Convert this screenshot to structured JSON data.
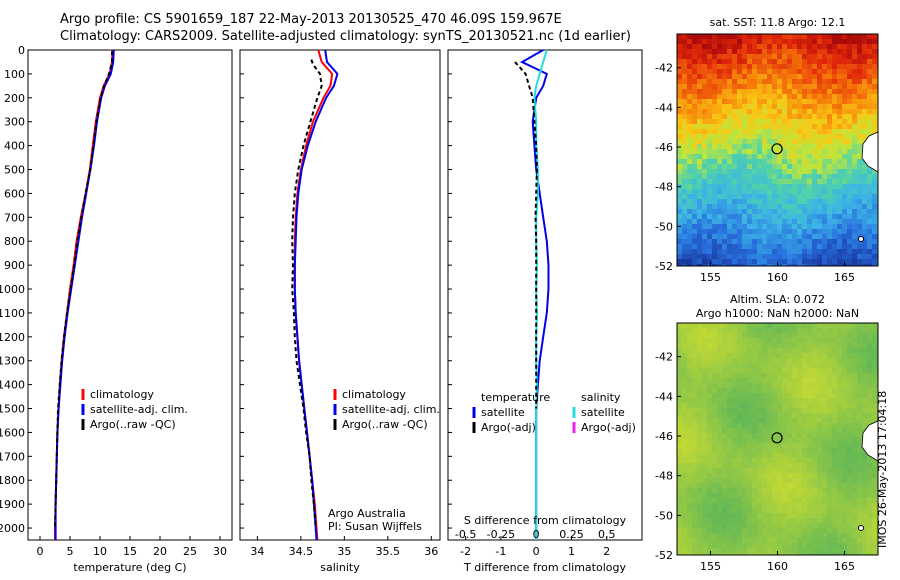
{
  "header": {
    "line1": "Argo profile: CS 5901659_187 22-May-2013 20130525_470 46.09S 159.967E",
    "line2": "Climatology: CARS2009. Satellite-adjusted climatology: synTS_20130521.nc (1d earlier)"
  },
  "stamp": "IMOS 26-May-2013 17:04:18",
  "colors": {
    "climatology": "#ff0000",
    "satellite": "#0000ee",
    "argo": "#000000",
    "salinity_satellite": "#22dddd",
    "salinity_argo": "#ee22ee"
  },
  "chart_data": [
    {
      "type": "line",
      "name": "temperature-profile",
      "xlabel": "temperature (deg C)",
      "ylabel": "",
      "xlim": [
        -2,
        32
      ],
      "ylim": [
        2050,
        0
      ],
      "xticks": [
        0,
        5,
        10,
        15,
        20,
        25,
        30
      ],
      "yticks": [
        0,
        100,
        200,
        300,
        400,
        500,
        600,
        700,
        800,
        900,
        1000,
        1100,
        1200,
        1300,
        1400,
        1500,
        1600,
        1700,
        1800,
        1900,
        2000
      ],
      "legend": [
        "climatology",
        "satellite-adj. clim.",
        "Argo(..raw -QC)"
      ],
      "legend_position": "lower-center",
      "series": [
        {
          "depth": [
            0,
            50,
            100,
            150,
            200,
            300,
            400,
            500,
            600,
            700,
            800,
            900,
            1000,
            1100,
            1200,
            1300,
            1400,
            1500,
            1600,
            1700,
            1800,
            1900,
            2000,
            2050
          ],
          "values": [
            12.1,
            12.0,
            11.6,
            10.6,
            10.0,
            9.3,
            8.8,
            8.3,
            7.6,
            6.8,
            6.1,
            5.6,
            5.0,
            4.5,
            4.0,
            3.6,
            3.3,
            3.1,
            2.9,
            2.8,
            2.7,
            2.6,
            2.5,
            2.5
          ]
        },
        {
          "depth": [
            0,
            50,
            100,
            150,
            200,
            300,
            400,
            500,
            600,
            700,
            800,
            900,
            1000,
            1100,
            1200,
            1300,
            1400,
            1500,
            1600,
            1700,
            1800,
            1900,
            2000,
            2050
          ],
          "values": [
            12.3,
            12.2,
            11.8,
            10.8,
            10.2,
            9.5,
            9.0,
            8.4,
            7.7,
            7.0,
            6.4,
            5.8,
            5.2,
            4.6,
            4.1,
            3.7,
            3.4,
            3.1,
            2.9,
            2.8,
            2.7,
            2.6,
            2.6,
            2.6
          ]
        },
        {
          "depth": [
            5,
            50,
            100,
            150,
            200,
            300,
            400,
            500,
            600,
            700,
            800,
            900,
            1000,
            1100,
            1200,
            1300,
            1400,
            1500,
            1600,
            1700,
            1800,
            1900,
            2000
          ],
          "values": [
            12.0,
            12.0,
            11.5,
            10.7,
            10.1,
            9.4,
            8.9,
            8.4,
            7.6,
            6.9,
            6.2,
            5.7,
            5.1,
            4.5,
            4.0,
            3.6,
            3.3,
            3.0,
            2.9,
            2.8,
            2.7,
            2.6,
            2.5
          ]
        }
      ]
    },
    {
      "type": "line",
      "name": "salinity-profile",
      "xlabel": "salinity",
      "ylabel": "",
      "xlim": [
        33.8,
        36.1
      ],
      "ylim": [
        2050,
        0
      ],
      "xticks": [
        34,
        34.5,
        35,
        35.5,
        36
      ],
      "legend": [
        "climatology",
        "satellite-adj. clim.",
        "Argo(..raw -QC)"
      ],
      "legend_position": "lower-right",
      "annotation": [
        "Argo Australia",
        "PI: Susan Wijffels"
      ],
      "series": [
        {
          "depth": [
            0,
            50,
            100,
            150,
            200,
            300,
            400,
            500,
            600,
            700,
            800,
            900,
            1000,
            1100,
            1200,
            1300,
            1400,
            1500,
            1600,
            1700,
            1800,
            1900,
            2000,
            2050
          ],
          "values": [
            34.7,
            34.74,
            34.86,
            34.84,
            34.76,
            34.64,
            34.56,
            34.5,
            34.46,
            34.44,
            34.43,
            34.43,
            34.43,
            34.44,
            34.46,
            34.48,
            34.51,
            34.54,
            34.57,
            34.6,
            34.63,
            34.66,
            34.68,
            34.69
          ]
        },
        {
          "depth": [
            0,
            50,
            100,
            150,
            200,
            300,
            400,
            500,
            600,
            700,
            800,
            900,
            1000,
            1100,
            1200,
            1300,
            1400,
            1500,
            1600,
            1700,
            1800,
            1900,
            2000,
            2050
          ],
          "values": [
            34.78,
            34.8,
            34.92,
            34.88,
            34.79,
            34.67,
            34.58,
            34.51,
            34.47,
            34.45,
            34.44,
            34.43,
            34.43,
            34.44,
            34.46,
            34.48,
            34.51,
            34.54,
            34.57,
            34.6,
            34.63,
            34.65,
            34.67,
            34.68
          ]
        },
        {
          "depth": [
            40,
            60,
            100,
            150,
            200,
            300,
            400,
            500,
            600,
            700,
            800,
            900,
            1000,
            1100,
            1200,
            1300,
            1400,
            1500,
            1600,
            1700,
            1800,
            1900,
            2000
          ],
          "values": [
            34.62,
            34.64,
            34.72,
            34.74,
            34.69,
            34.61,
            34.53,
            34.47,
            34.43,
            34.41,
            34.4,
            34.41,
            34.4,
            34.42,
            34.43,
            34.45,
            34.49,
            34.53,
            34.56,
            34.6,
            34.62,
            34.65,
            34.67
          ]
        }
      ]
    },
    {
      "type": "line",
      "name": "difference-profile",
      "xlabel": "T difference from climatology",
      "xlabel_top": "S difference from climatology",
      "xlim": [
        -2.5,
        3
      ],
      "xlim_top": [
        -0.625,
        0.75
      ],
      "ylim": [
        2050,
        0
      ],
      "xticks": [
        -2,
        -1,
        0,
        1,
        2
      ],
      "xticks_top": [
        -0.5,
        -0.25,
        0,
        0.25,
        0.5
      ],
      "legend": {
        "temperature": {
          "heading": "temperature",
          "items": [
            "satellite",
            "Argo(-adj)"
          ]
        },
        "salinity": {
          "heading": "salinity",
          "items": [
            "satellite",
            "Argo(-adj)"
          ]
        }
      },
      "legend_position": "lower-center",
      "series": [
        {
          "depth": [
            0,
            50,
            100,
            150,
            200,
            300,
            400,
            500,
            600,
            700,
            800,
            900,
            1000,
            1100,
            1200,
            1300,
            1400,
            1500,
            1600,
            1700,
            1800,
            1900,
            2000,
            2050
          ],
          "values": [
            0.2,
            -0.4,
            0.3,
            0.2,
            0.0,
            -0.1,
            -0.05,
            0.0,
            0.1,
            0.2,
            0.3,
            0.35,
            0.35,
            0.3,
            0.2,
            0.1,
            0.05,
            0.0,
            0.0,
            0.0,
            0.0,
            0.0,
            0.0,
            0.0
          ]
        },
        {
          "depth": [
            0,
            50,
            100,
            150,
            200,
            300,
            400,
            500,
            600,
            700,
            800,
            900,
            1000,
            1100,
            1200,
            1300,
            1400,
            1500,
            1600,
            1700,
            1800,
            1900,
            2000,
            2050
          ],
          "values": [
            0.3,
            0.2,
            0.1,
            0.0,
            -0.05,
            0.0,
            0.0,
            0.05,
            0.05,
            0.0,
            0.0,
            0.02,
            0.0,
            0.02,
            0.0,
            0.0,
            0.02,
            0.0,
            0.0,
            0.0,
            0.0,
            0.0,
            0.0,
            0.0
          ]
        },
        {
          "depth": [
            50,
            100,
            150,
            200,
            300,
            400,
            500,
            600,
            700,
            800,
            900,
            1000,
            1100,
            1200,
            1300,
            1400,
            1500
          ],
          "values": [
            -0.6,
            -0.3,
            -0.2,
            -0.1,
            -0.05,
            0.0,
            0.02,
            0.0,
            -0.02,
            0.0,
            0.0,
            0.0,
            0.0,
            0.0,
            0.0,
            0.0,
            0.0
          ]
        }
      ]
    },
    {
      "type": "heatmap",
      "name": "sst-map",
      "title": "sat. SST: 11.8 Argo: 12.1",
      "xlim": [
        152.5,
        167.5
      ],
      "ylim": [
        -52,
        -40.3
      ],
      "xticks": [
        155,
        160,
        165
      ],
      "yticks": [
        -42,
        -44,
        -46,
        -48,
        -50,
        -52
      ],
      "marker": {
        "lon": 159.967,
        "lat": -46.09
      }
    },
    {
      "type": "heatmap",
      "name": "sla-map",
      "title": "Altim. SLA: 0.072",
      "subtitle": "Argo h1000: NaN h2000: NaN",
      "xlim": [
        152.5,
        167.5
      ],
      "ylim": [
        -52,
        -40.3
      ],
      "xticks": [
        155,
        160,
        165
      ],
      "yticks": [
        -42,
        -44,
        -46,
        -48,
        -50,
        -52
      ],
      "marker": {
        "lon": 159.967,
        "lat": -46.09
      }
    }
  ]
}
